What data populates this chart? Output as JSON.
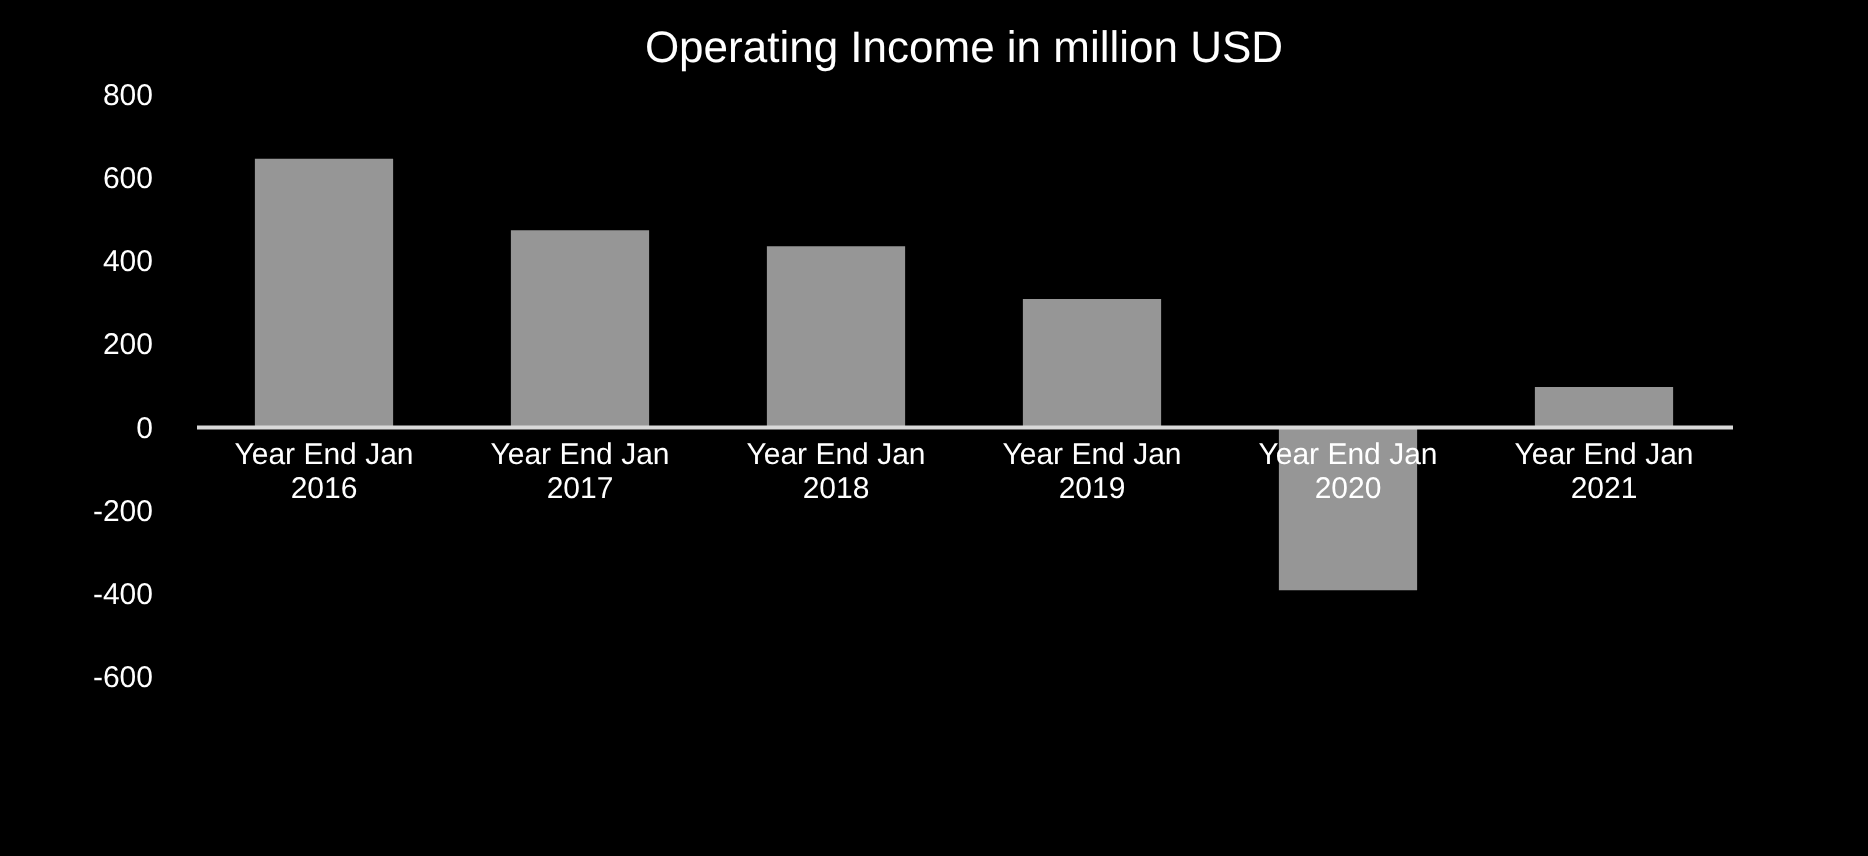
{
  "chart_data": {
    "type": "bar",
    "title": "Operating Income in million USD",
    "categories": [
      "Year End Jan 2016",
      "Year End Jan 2017",
      "Year End Jan 2018",
      "Year End Jan 2019",
      "Year End Jan 2020",
      "Year End Jan 2021"
    ],
    "values": [
      644,
      472,
      434,
      307,
      -394,
      95
    ],
    "color": "#969696",
    "ylim": [
      -600,
      800
    ],
    "yticks": [
      -600,
      -400,
      -200,
      0,
      200,
      400,
      600,
      800
    ],
    "grid": false
  }
}
